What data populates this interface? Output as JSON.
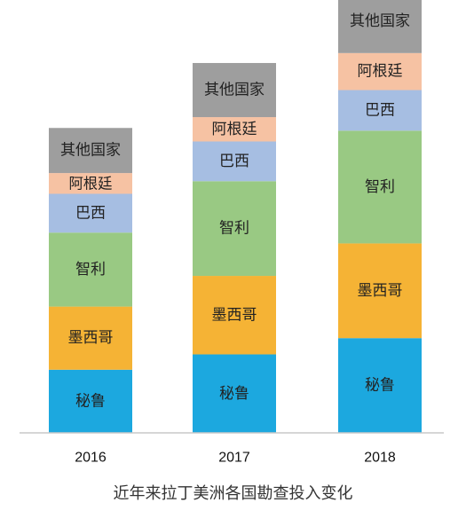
{
  "chart_data": {
    "type": "bar",
    "stacked": true,
    "categories": [
      "2016",
      "2017",
      "2018"
    ],
    "series": [
      {
        "name": "秘鲁",
        "color": "#1ca8df",
        "values": [
          7.0,
          8.7,
          10.5
        ]
      },
      {
        "name": "墨西哥",
        "color": "#f5b335",
        "values": [
          7.0,
          8.7,
          10.5
        ]
      },
      {
        "name": "智利",
        "color": "#99c983",
        "values": [
          8.2,
          10.5,
          12.5
        ]
      },
      {
        "name": "巴西",
        "color": "#a6bee2",
        "values": [
          4.3,
          4.4,
          4.5
        ]
      },
      {
        "name": "阿根廷",
        "color": "#f6c2a3",
        "values": [
          2.3,
          2.7,
          4.1
        ]
      },
      {
        "name": "其他国家",
        "color": "#9e9e9e",
        "values": [
          5.0,
          6.0,
          7.0
        ]
      }
    ],
    "title": "",
    "xlabel": "",
    "ylabel": "",
    "ylim": [
      0,
      47
    ],
    "grid": false,
    "legend": "none",
    "labels_inside_segments": true
  },
  "caption": "近年来拉丁美洲各国勘查投入变化"
}
